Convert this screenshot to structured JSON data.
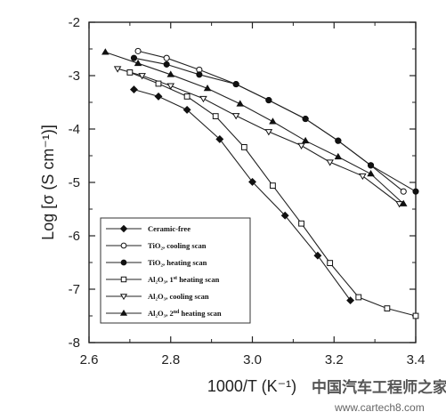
{
  "chart_data": {
    "type": "line",
    "xlabel": "1000/T (K⁻¹)",
    "ylabel": "Log [σ (S cm⁻¹)]",
    "xlim": [
      2.6,
      3.4
    ],
    "ylim": [
      -8,
      -2
    ],
    "x_ticks": [
      "2.6",
      "2.8",
      "3.0",
      "3.2",
      "3.4"
    ],
    "y_ticks": [
      "-2",
      "-3",
      "-4",
      "-5",
      "-6",
      "-7",
      "-8"
    ],
    "legend_position": "bottom-left",
    "grid": false,
    "series": [
      {
        "name": "Ceramic-free",
        "marker": "diamond",
        "fill": "filled",
        "x": [
          2.71,
          2.77,
          2.84,
          2.92,
          3.0,
          3.08,
          3.16,
          3.24
        ],
        "y": [
          -3.26,
          -3.39,
          -3.64,
          -4.19,
          -4.99,
          -5.62,
          -6.37,
          -7.21
        ]
      },
      {
        "name": "TiO₂, cooling scan",
        "marker": "circle",
        "fill": "open",
        "x": [
          2.72,
          2.79,
          2.87,
          2.96,
          3.04,
          3.13,
          3.21,
          3.29,
          3.37
        ],
        "y": [
          -2.54,
          -2.67,
          -2.89,
          -3.16,
          -3.46,
          -3.81,
          -4.22,
          -4.68,
          -5.17
        ]
      },
      {
        "name": "TiO₂, heating scan",
        "marker": "circle",
        "fill": "filled",
        "x": [
          2.71,
          2.79,
          2.87,
          2.96,
          3.04,
          3.13,
          3.21,
          3.29,
          3.4
        ],
        "y": [
          -2.67,
          -2.79,
          -2.98,
          -3.16,
          -3.46,
          -3.81,
          -4.22,
          -4.68,
          -5.17
        ]
      },
      {
        "name": "Al₂O₃, 1st heating scan",
        "marker": "square",
        "fill": "open",
        "x": [
          2.7,
          2.77,
          2.84,
          2.91,
          2.98,
          3.05,
          3.12,
          3.19,
          3.26,
          3.33,
          3.4
        ],
        "y": [
          -2.94,
          -3.15,
          -3.39,
          -3.76,
          -4.34,
          -5.06,
          -5.77,
          -6.51,
          -7.15,
          -7.36,
          -7.5
        ]
      },
      {
        "name": "Al₂O₃, cooling scan",
        "marker": "triangle-down",
        "fill": "open",
        "x": [
          2.67,
          2.73,
          2.8,
          2.88,
          2.96,
          3.04,
          3.12,
          3.19,
          3.27,
          3.36
        ],
        "y": [
          -2.87,
          -3.0,
          -3.19,
          -3.43,
          -3.75,
          -4.05,
          -4.31,
          -4.62,
          -4.88,
          -5.4
        ]
      },
      {
        "name": "Al₂O₃, 2nd heating scan",
        "marker": "triangle-up",
        "fill": "filled",
        "x": [
          2.64,
          2.72,
          2.8,
          2.89,
          2.97,
          3.05,
          3.13,
          3.21,
          3.29,
          3.37
        ],
        "y": [
          -2.56,
          -2.77,
          -2.98,
          -3.24,
          -3.53,
          -3.86,
          -4.22,
          -4.52,
          -4.84,
          -5.4
        ]
      }
    ],
    "legend_labels": [
      {
        "base": "Ceramic-free",
        "sup": "",
        "rest": ""
      },
      {
        "base": "TiO₂, cooling scan",
        "sup": "",
        "rest": ""
      },
      {
        "base": "TiO₂, heating scan",
        "sup": "",
        "rest": ""
      },
      {
        "base": "Al₂O₃, 1",
        "sup": "st",
        "rest": " heating scan"
      },
      {
        "base": "Al₂O₃, cooling scan",
        "sup": "",
        "rest": ""
      },
      {
        "base": "Al₂O₃, 2",
        "sup": "nd",
        "rest": " heating scan"
      }
    ]
  },
  "watermark": {
    "chinese": "中国汽车工程师之家",
    "url": "www.cartech8.com"
  }
}
